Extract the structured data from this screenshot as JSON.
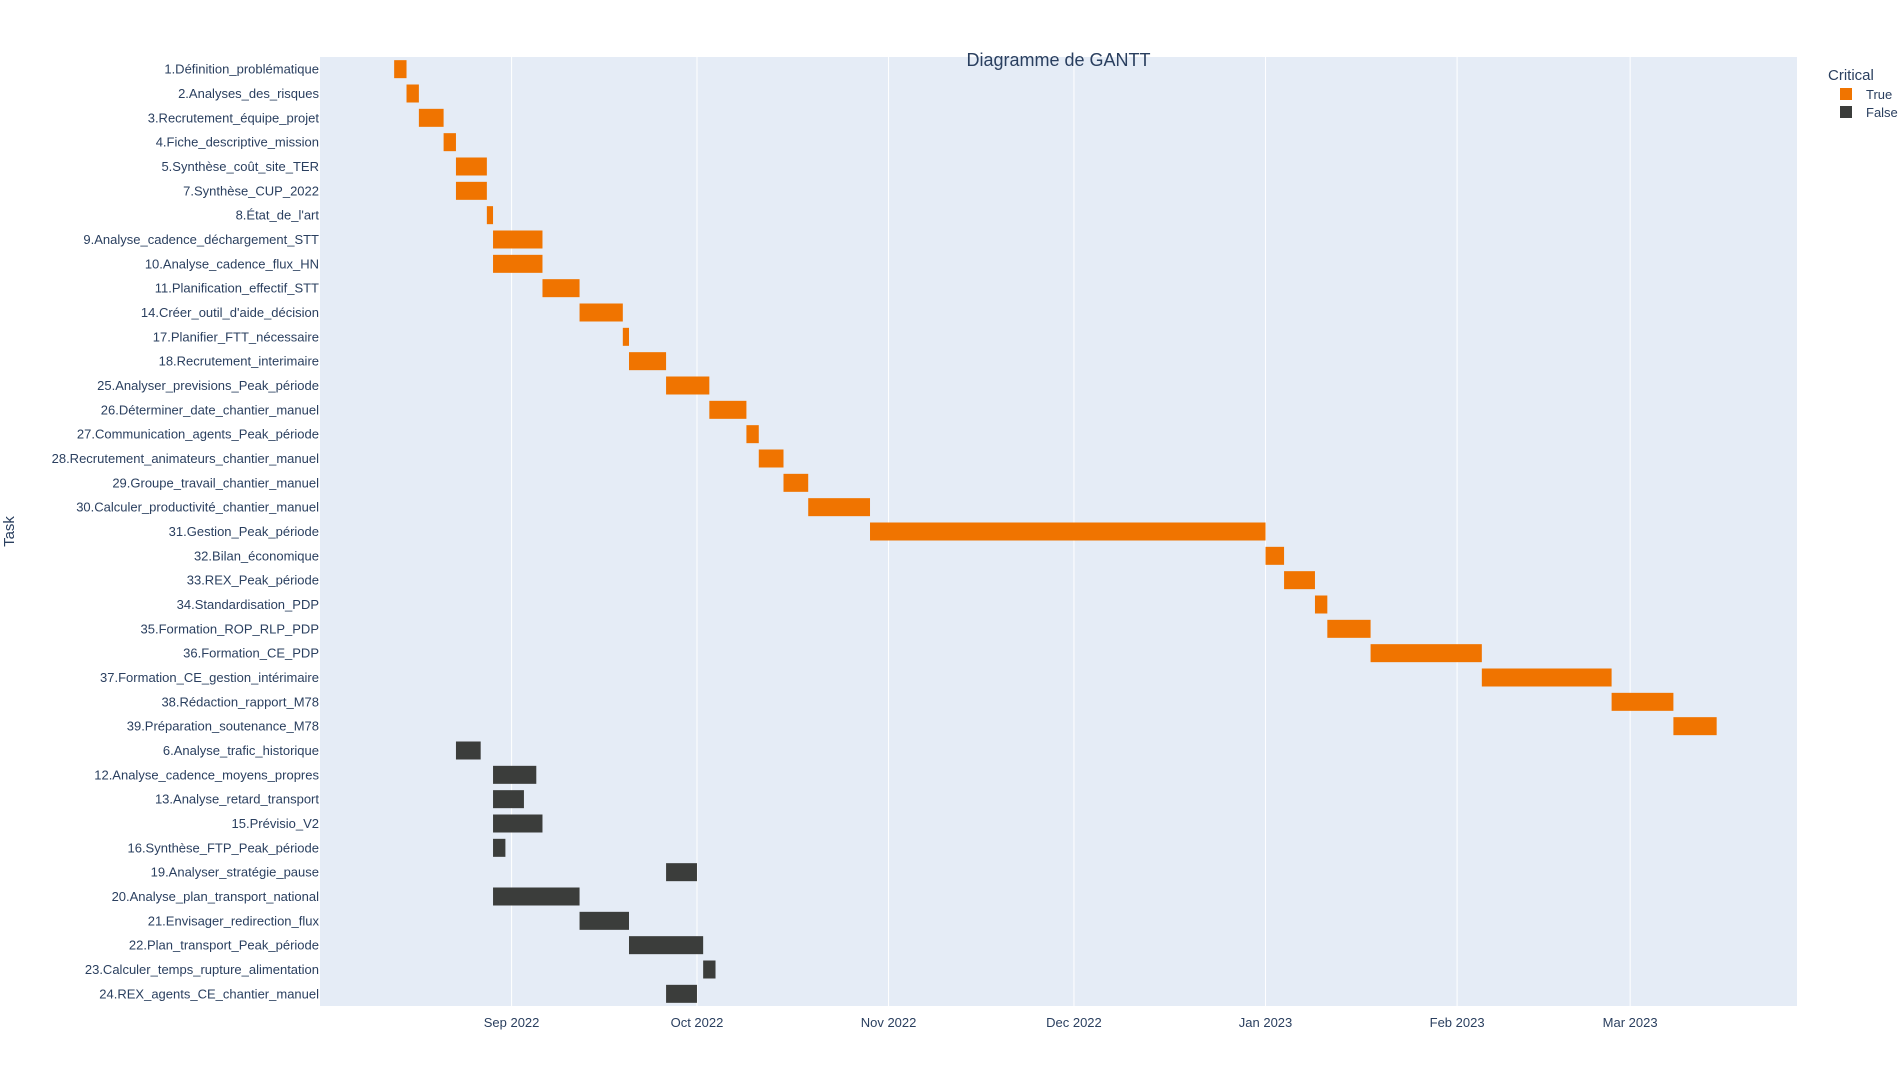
{
  "chart_data": {
    "type": "gantt",
    "title": "Diagramme de GANTT",
    "ylabel": "Task",
    "xlabel": "",
    "x_range": [
      "2022-08-01",
      "2023-03-28"
    ],
    "x_ticks": [
      {
        "date": "2022-09-01",
        "label": "Sep 2022"
      },
      {
        "date": "2022-10-01",
        "label": "Oct 2022"
      },
      {
        "date": "2022-11-01",
        "label": "Nov 2022"
      },
      {
        "date": "2022-12-01",
        "label": "Dec 2022"
      },
      {
        "date": "2023-01-01",
        "label": "Jan 2023"
      },
      {
        "date": "2023-02-01",
        "label": "Feb 2023"
      },
      {
        "date": "2023-03-01",
        "label": "Mar 2023"
      }
    ],
    "legend": {
      "title": "Critical",
      "position": "top-right",
      "entries": [
        {
          "label": "True",
          "color": "#F07400"
        },
        {
          "label": "False",
          "color": "#3B3D3B"
        }
      ]
    },
    "colors": {
      "True": "#F07400",
      "False": "#3B3D3B",
      "plot_bg": "#E5ECF6",
      "grid": "#ffffff",
      "text": "#2a3f5f"
    },
    "tasks": [
      {
        "task": "1.Définition_problématique",
        "start": "2022-08-13",
        "end": "2022-08-15",
        "critical": "True"
      },
      {
        "task": "2.Analyses_des_risques",
        "start": "2022-08-15",
        "end": "2022-08-17",
        "critical": "True"
      },
      {
        "task": "3.Recrutement_équipe_projet",
        "start": "2022-08-17",
        "end": "2022-08-21",
        "critical": "True"
      },
      {
        "task": "4.Fiche_descriptive_mission",
        "start": "2022-08-21",
        "end": "2022-08-23",
        "critical": "True"
      },
      {
        "task": "5.Synthèse_coût_site_TER",
        "start": "2022-08-23",
        "end": "2022-08-28",
        "critical": "True"
      },
      {
        "task": "7.Synthèse_CUP_2022",
        "start": "2022-08-23",
        "end": "2022-08-28",
        "critical": "True"
      },
      {
        "task": "8.État_de_l'art",
        "start": "2022-08-28",
        "end": "2022-08-29",
        "critical": "True"
      },
      {
        "task": "9.Analyse_cadence_déchargement_STT",
        "start": "2022-08-29",
        "end": "2022-09-06",
        "critical": "True"
      },
      {
        "task": "10.Analyse_cadence_flux_HN",
        "start": "2022-08-29",
        "end": "2022-09-06",
        "critical": "True"
      },
      {
        "task": "11.Planification_effectif_STT",
        "start": "2022-09-06",
        "end": "2022-09-12",
        "critical": "True"
      },
      {
        "task": "14.Créer_outil_d'aide_décision",
        "start": "2022-09-12",
        "end": "2022-09-19",
        "critical": "True"
      },
      {
        "task": "17.Planifier_FTT_nécessaire",
        "start": "2022-09-19",
        "end": "2022-09-20",
        "critical": "True"
      },
      {
        "task": "18.Recrutement_interimaire",
        "start": "2022-09-20",
        "end": "2022-09-26",
        "critical": "True"
      },
      {
        "task": "25.Analyser_previsions_Peak_période",
        "start": "2022-09-26",
        "end": "2022-10-03",
        "critical": "True"
      },
      {
        "task": "26.Déterminer_date_chantier_manuel",
        "start": "2022-10-03",
        "end": "2022-10-09",
        "critical": "True"
      },
      {
        "task": "27.Communication_agents_Peak_période",
        "start": "2022-10-09",
        "end": "2022-10-11",
        "critical": "True"
      },
      {
        "task": "28.Recrutement_animateurs_chantier_manuel",
        "start": "2022-10-11",
        "end": "2022-10-15",
        "critical": "True"
      },
      {
        "task": "29.Groupe_travail_chantier_manuel",
        "start": "2022-10-15",
        "end": "2022-10-19",
        "critical": "True"
      },
      {
        "task": "30.Calculer_productivité_chantier_manuel",
        "start": "2022-10-19",
        "end": "2022-10-29",
        "critical": "True"
      },
      {
        "task": "31.Gestion_Peak_période",
        "start": "2022-10-29",
        "end": "2023-01-01",
        "critical": "True"
      },
      {
        "task": "32.Bilan_économique",
        "start": "2023-01-01",
        "end": "2023-01-04",
        "critical": "True"
      },
      {
        "task": "33.REX_Peak_période",
        "start": "2023-01-04",
        "end": "2023-01-09",
        "critical": "True"
      },
      {
        "task": "34.Standardisation_PDP",
        "start": "2023-01-09",
        "end": "2023-01-11",
        "critical": "True"
      },
      {
        "task": "35.Formation_ROP_RLP_PDP",
        "start": "2023-01-11",
        "end": "2023-01-18",
        "critical": "True"
      },
      {
        "task": "36.Formation_CE_PDP",
        "start": "2023-01-18",
        "end": "2023-02-05",
        "critical": "True"
      },
      {
        "task": "37.Formation_CE_gestion_intérimaire",
        "start": "2023-02-05",
        "end": "2023-02-26",
        "critical": "True"
      },
      {
        "task": "38.Rédaction_rapport_M78",
        "start": "2023-02-26",
        "end": "2023-03-08",
        "critical": "True"
      },
      {
        "task": "39.Préparation_soutenance_M78",
        "start": "2023-03-08",
        "end": "2023-03-15",
        "critical": "True"
      },
      {
        "task": "6.Analyse_trafic_historique",
        "start": "2022-08-23",
        "end": "2022-08-27",
        "critical": "False"
      },
      {
        "task": "12.Analyse_cadence_moyens_propres",
        "start": "2022-08-29",
        "end": "2022-09-05",
        "critical": "False"
      },
      {
        "task": "13.Analyse_retard_transport",
        "start": "2022-08-29",
        "end": "2022-09-03",
        "critical": "False"
      },
      {
        "task": "15.Prévisio_V2",
        "start": "2022-08-29",
        "end": "2022-09-06",
        "critical": "False"
      },
      {
        "task": "16.Synthèse_FTP_Peak_période",
        "start": "2022-08-29",
        "end": "2022-08-31",
        "critical": "False"
      },
      {
        "task": "19.Analyser_stratégie_pause",
        "start": "2022-09-26",
        "end": "2022-10-01",
        "critical": "False"
      },
      {
        "task": "20.Analyse_plan_transport_national",
        "start": "2022-08-29",
        "end": "2022-09-12",
        "critical": "False"
      },
      {
        "task": "21.Envisager_redirection_flux",
        "start": "2022-09-12",
        "end": "2022-09-20",
        "critical": "False"
      },
      {
        "task": "22.Plan_transport_Peak_période",
        "start": "2022-09-20",
        "end": "2022-10-02",
        "critical": "False"
      },
      {
        "task": "23.Calculer_temps_rupture_alimentation",
        "start": "2022-10-02",
        "end": "2022-10-04",
        "critical": "False"
      },
      {
        "task": "24.REX_agents_CE_chantier_manuel",
        "start": "2022-09-26",
        "end": "2022-10-01",
        "critical": "False"
      }
    ]
  }
}
